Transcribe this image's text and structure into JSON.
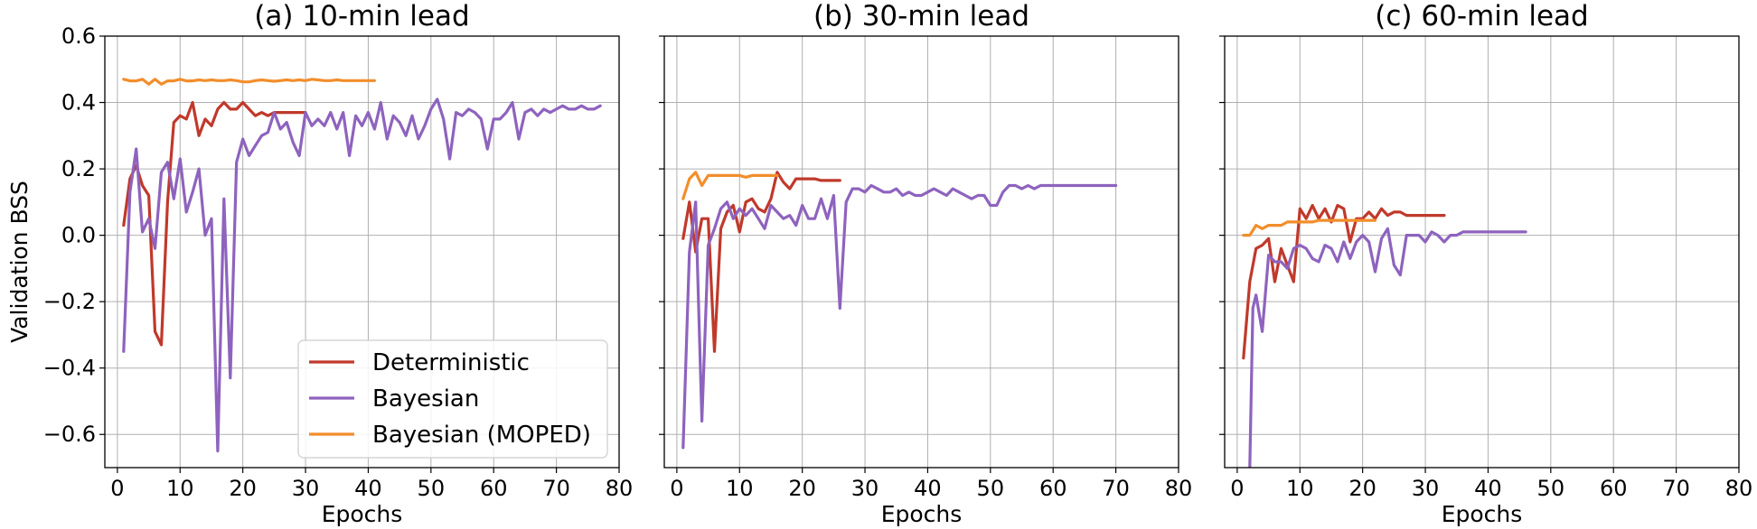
{
  "chart_data": [
    {
      "type": "line",
      "title": "(a) 10-min lead",
      "xlabel": "Epochs",
      "ylabel": "Validation BSS",
      "xlim": [
        -2,
        80
      ],
      "ylim": [
        -0.7,
        0.6
      ],
      "xticks": [
        "0",
        "10",
        "20",
        "30",
        "40",
        "50",
        "60",
        "70",
        "80"
      ],
      "yticks": [
        "0.6",
        "0.4",
        "0.2",
        "0.0",
        "−0.2",
        "−0.4",
        "−0.6"
      ],
      "grid": true,
      "legend_position": "lower-right",
      "series": [
        {
          "name": "Deterministic",
          "color": "#c0392b",
          "x": [
            1,
            2,
            3,
            4,
            5,
            6,
            7,
            8,
            9,
            10,
            11,
            12,
            13,
            14,
            15,
            16,
            17,
            18,
            19,
            20,
            21,
            22,
            23,
            24,
            25,
            26,
            27,
            28,
            29,
            30
          ],
          "y": [
            0.03,
            0.17,
            0.21,
            0.15,
            0.12,
            -0.29,
            -0.33,
            0.1,
            0.34,
            0.36,
            0.35,
            0.4,
            0.3,
            0.35,
            0.33,
            0.38,
            0.4,
            0.38,
            0.38,
            0.4,
            0.38,
            0.36,
            0.37,
            0.36,
            0.37,
            0.37,
            0.37,
            0.37,
            0.37,
            0.37
          ]
        },
        {
          "name": "Bayesian",
          "color": "#8e63be",
          "x": [
            1,
            2,
            3,
            4,
            5,
            6,
            7,
            8,
            9,
            10,
            11,
            12,
            13,
            14,
            15,
            16,
            17,
            18,
            19,
            20,
            21,
            22,
            23,
            24,
            25,
            26,
            27,
            28,
            29,
            30,
            31,
            32,
            33,
            34,
            35,
            36,
            37,
            38,
            39,
            40,
            41,
            42,
            43,
            44,
            45,
            46,
            47,
            48,
            49,
            50,
            51,
            52,
            53,
            54,
            55,
            56,
            57,
            58,
            59,
            60,
            61,
            62,
            63,
            64,
            65,
            66,
            67,
            68,
            69,
            70,
            71,
            72,
            73,
            74,
            75,
            76,
            77
          ],
          "y": [
            -0.35,
            0.13,
            0.26,
            0.01,
            0.05,
            -0.04,
            0.19,
            0.22,
            0.11,
            0.23,
            0.07,
            0.13,
            0.2,
            0.0,
            0.05,
            -0.65,
            0.11,
            -0.43,
            0.22,
            0.29,
            0.24,
            0.27,
            0.3,
            0.31,
            0.37,
            0.32,
            0.34,
            0.28,
            0.24,
            0.37,
            0.33,
            0.35,
            0.33,
            0.37,
            0.32,
            0.37,
            0.24,
            0.36,
            0.33,
            0.37,
            0.32,
            0.4,
            0.29,
            0.36,
            0.34,
            0.3,
            0.36,
            0.29,
            0.33,
            0.38,
            0.41,
            0.35,
            0.23,
            0.37,
            0.36,
            0.38,
            0.37,
            0.35,
            0.26,
            0.35,
            0.35,
            0.37,
            0.4,
            0.29,
            0.37,
            0.38,
            0.36,
            0.38,
            0.37,
            0.38,
            0.39,
            0.38,
            0.38,
            0.39,
            0.38,
            0.38,
            0.39
          ]
        },
        {
          "name": "Bayesian (MOPED)",
          "color": "#f28e2b",
          "x": [
            1,
            2,
            3,
            4,
            5,
            6,
            7,
            8,
            9,
            10,
            11,
            12,
            13,
            14,
            15,
            16,
            17,
            18,
            19,
            20,
            21,
            22,
            23,
            24,
            25,
            26,
            27,
            28,
            29,
            30,
            31,
            32,
            33,
            34,
            35,
            36,
            37,
            38,
            39,
            40,
            41
          ],
          "y": [
            0.47,
            0.465,
            0.465,
            0.47,
            0.455,
            0.47,
            0.455,
            0.465,
            0.465,
            0.47,
            0.465,
            0.465,
            0.468,
            0.466,
            0.468,
            0.466,
            0.466,
            0.468,
            0.466,
            0.462,
            0.462,
            0.466,
            0.468,
            0.466,
            0.464,
            0.466,
            0.468,
            0.466,
            0.468,
            0.466,
            0.47,
            0.468,
            0.466,
            0.466,
            0.468,
            0.466,
            0.466,
            0.466,
            0.466,
            0.466,
            0.466
          ]
        }
      ]
    },
    {
      "type": "line",
      "title": "(b) 30-min lead",
      "xlabel": "Epochs",
      "ylabel": "",
      "xlim": [
        -2,
        80
      ],
      "ylim": [
        -0.7,
        0.6
      ],
      "xticks": [
        "0",
        "10",
        "20",
        "30",
        "40",
        "50",
        "60",
        "70",
        "80"
      ],
      "yticks": [],
      "grid": true,
      "series": [
        {
          "name": "Deterministic",
          "color": "#c0392b",
          "x": [
            1,
            2,
            3,
            4,
            5,
            6,
            7,
            8,
            9,
            10,
            11,
            12,
            13,
            14,
            15,
            16,
            17,
            18,
            19,
            20,
            21,
            22,
            23,
            24,
            25,
            26
          ],
          "y": [
            -0.01,
            0.1,
            -0.05,
            0.05,
            0.05,
            -0.35,
            0.02,
            0.07,
            0.09,
            0.01,
            0.1,
            0.11,
            0.08,
            0.07,
            0.11,
            0.19,
            0.16,
            0.14,
            0.17,
            0.17,
            0.17,
            0.17,
            0.165,
            0.165,
            0.165,
            0.165
          ]
        },
        {
          "name": "Bayesian",
          "color": "#8e63be",
          "x": [
            1,
            2,
            3,
            4,
            5,
            6,
            7,
            8,
            9,
            10,
            11,
            12,
            13,
            14,
            15,
            16,
            17,
            18,
            19,
            20,
            21,
            22,
            23,
            24,
            25,
            26,
            27,
            28,
            29,
            30,
            31,
            32,
            33,
            34,
            35,
            36,
            37,
            38,
            39,
            40,
            41,
            42,
            43,
            44,
            45,
            46,
            47,
            48,
            49,
            50,
            51,
            52,
            53,
            54,
            55,
            56,
            57,
            58,
            59,
            60,
            61,
            62,
            63,
            64,
            65,
            66,
            67,
            68,
            69,
            70
          ],
          "y": [
            -0.64,
            -0.05,
            0.1,
            -0.56,
            -0.03,
            0.02,
            0.08,
            0.1,
            0.05,
            0.08,
            0.06,
            0.08,
            0.05,
            0.02,
            0.09,
            0.07,
            0.05,
            0.06,
            0.03,
            0.09,
            0.05,
            0.05,
            0.11,
            0.05,
            0.12,
            -0.22,
            0.1,
            0.14,
            0.14,
            0.13,
            0.15,
            0.14,
            0.13,
            0.13,
            0.14,
            0.12,
            0.13,
            0.12,
            0.12,
            0.13,
            0.14,
            0.13,
            0.12,
            0.14,
            0.13,
            0.12,
            0.11,
            0.12,
            0.12,
            0.09,
            0.09,
            0.13,
            0.15,
            0.15,
            0.14,
            0.15,
            0.14,
            0.15,
            0.15,
            0.15,
            0.15,
            0.15,
            0.15,
            0.15,
            0.15,
            0.15,
            0.15,
            0.15,
            0.15,
            0.15
          ]
        },
        {
          "name": "Bayesian (MOPED)",
          "color": "#f28e2b",
          "x": [
            1,
            2,
            3,
            4,
            5,
            6,
            7,
            8,
            9,
            10,
            11,
            12,
            13,
            14,
            15,
            16
          ],
          "y": [
            0.11,
            0.17,
            0.19,
            0.15,
            0.18,
            0.18,
            0.18,
            0.18,
            0.18,
            0.18,
            0.175,
            0.18,
            0.18,
            0.18,
            0.18,
            0.18
          ]
        }
      ]
    },
    {
      "type": "line",
      "title": "(c) 60-min lead",
      "xlabel": "Epochs",
      "ylabel": "",
      "xlim": [
        -2,
        80
      ],
      "ylim": [
        -0.7,
        0.6
      ],
      "xticks": [
        "0",
        "10",
        "20",
        "30",
        "40",
        "50",
        "60",
        "70",
        "80"
      ],
      "yticks": [],
      "grid": true,
      "series": [
        {
          "name": "Deterministic",
          "color": "#c0392b",
          "x": [
            1,
            2,
            3,
            4,
            5,
            6,
            7,
            8,
            9,
            10,
            11,
            12,
            13,
            14,
            15,
            16,
            17,
            18,
            19,
            20,
            21,
            22,
            23,
            24,
            25,
            26,
            27,
            28,
            29,
            30,
            31,
            32,
            33
          ],
          "y": [
            -0.37,
            -0.14,
            -0.04,
            -0.03,
            -0.01,
            -0.14,
            -0.04,
            -0.09,
            -0.14,
            0.08,
            0.05,
            0.09,
            0.05,
            0.08,
            0.04,
            0.09,
            0.08,
            -0.02,
            0.05,
            0.05,
            0.07,
            0.05,
            0.08,
            0.06,
            0.07,
            0.07,
            0.06,
            0.06,
            0.06,
            0.06,
            0.06,
            0.06,
            0.06
          ]
        },
        {
          "name": "Bayesian",
          "color": "#8e63be",
          "x": [
            2,
            2.5,
            3,
            4,
            5,
            6,
            7,
            8,
            9,
            10,
            11,
            12,
            13,
            14,
            15,
            16,
            17,
            18,
            19,
            20,
            21,
            22,
            23,
            24,
            25,
            26,
            27,
            28,
            29,
            30,
            31,
            32,
            33,
            34,
            35,
            36,
            37,
            38,
            39,
            40,
            41,
            42,
            43,
            44,
            45,
            46
          ],
          "y": [
            -0.7,
            -0.22,
            -0.18,
            -0.29,
            -0.06,
            -0.08,
            -0.08,
            -0.1,
            -0.04,
            -0.03,
            -0.04,
            -0.07,
            -0.08,
            -0.03,
            -0.04,
            -0.08,
            -0.02,
            -0.07,
            -0.02,
            0.0,
            -0.02,
            -0.11,
            -0.01,
            0.02,
            -0.09,
            -0.12,
            0.0,
            0.0,
            0.0,
            -0.02,
            0.01,
            0.0,
            -0.02,
            0.0,
            0.0,
            0.01,
            0.01,
            0.01,
            0.01,
            0.01,
            0.01,
            0.01,
            0.01,
            0.01,
            0.01,
            0.01
          ]
        },
        {
          "name": "Bayesian (MOPED)",
          "color": "#f28e2b",
          "x": [
            1,
            2,
            3,
            4,
            5,
            6,
            7,
            8,
            9,
            10,
            11,
            12,
            13,
            14,
            15,
            16,
            17,
            18,
            19,
            20,
            21,
            22
          ],
          "y": [
            0.0,
            0.0,
            0.03,
            0.02,
            0.03,
            0.03,
            0.03,
            0.04,
            0.04,
            0.04,
            0.04,
            0.04,
            0.045,
            0.045,
            0.045,
            0.045,
            0.045,
            0.045,
            0.045,
            0.045,
            0.045,
            0.045
          ]
        }
      ]
    }
  ]
}
